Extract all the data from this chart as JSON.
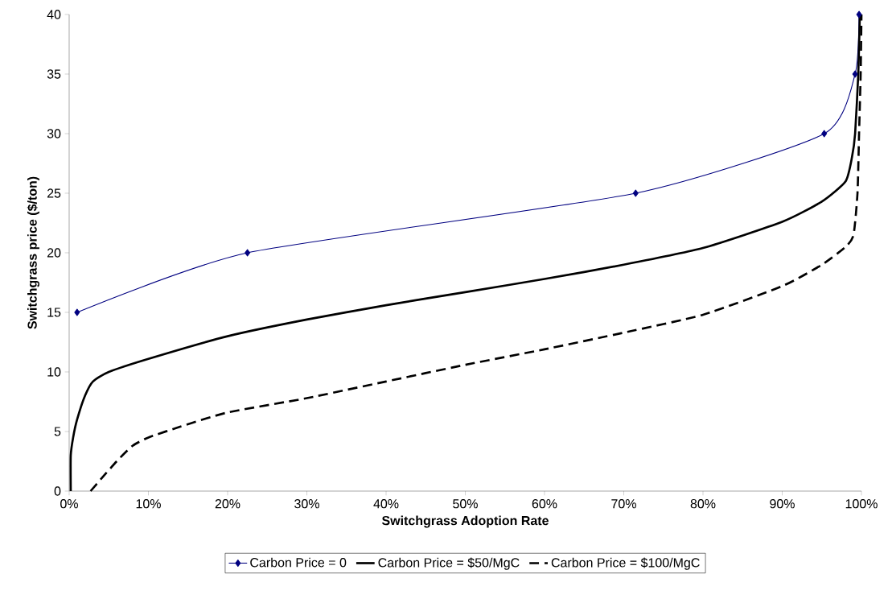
{
  "chart_data": {
    "type": "line",
    "xlabel": "Switchgrass Adoption Rate",
    "ylabel": "Switchgrass price ($/ton)",
    "xlim": [
      0,
      100
    ],
    "ylim": [
      0,
      40
    ],
    "xticks": [
      {
        "value": 0,
        "label": "0%"
      },
      {
        "value": 10,
        "label": "10%"
      },
      {
        "value": 20,
        "label": "20%"
      },
      {
        "value": 30,
        "label": "30%"
      },
      {
        "value": 40,
        "label": "40%"
      },
      {
        "value": 50,
        "label": "50%"
      },
      {
        "value": 60,
        "label": "60%"
      },
      {
        "value": 70,
        "label": "70%"
      },
      {
        "value": 80,
        "label": "80%"
      },
      {
        "value": 90,
        "label": "90%"
      },
      {
        "value": 100,
        "label": "100%"
      }
    ],
    "yticks": [
      0,
      5,
      10,
      15,
      20,
      25,
      30,
      35,
      40
    ],
    "grid": false,
    "legend": "bottom",
    "series": [
      {
        "name": "Carbon Price = 0",
        "color": "#000080",
        "marker": "diamond",
        "line_style": "solid",
        "x": [
          1,
          22.5,
          71.5,
          95.3,
          99.2,
          99.7
        ],
        "values": [
          15,
          20,
          25,
          30,
          35,
          40
        ]
      },
      {
        "name": "Carbon Price = $50/MgC",
        "color": "#000000",
        "marker": "none",
        "line_style": "solid",
        "x": [
          0.2,
          0.2,
          0.5,
          1,
          2,
          3,
          5,
          10,
          20,
          30,
          40,
          50,
          60,
          70,
          80,
          90,
          95,
          98,
          98.8,
          99.2,
          99.6,
          99.8
        ],
        "values": [
          0,
          3,
          4.5,
          6,
          8,
          9.2,
          10,
          11.1,
          13,
          14.4,
          15.6,
          16.7,
          17.8,
          19,
          20.4,
          22.6,
          24.3,
          26,
          28,
          30,
          35,
          40
        ]
      },
      {
        "name": "Carbon Price = $100/MgC",
        "color": "#000000",
        "marker": "none",
        "line_style": "dashed",
        "x": [
          2.7,
          4,
          6,
          8,
          10,
          14,
          20,
          30,
          40,
          50,
          60,
          70,
          80,
          90,
          95,
          98,
          99,
          99.5,
          99.7,
          99.9,
          100
        ],
        "values": [
          0,
          1,
          2.5,
          3.8,
          4.5,
          5.4,
          6.6,
          7.8,
          9.2,
          10.6,
          11.9,
          13.3,
          14.8,
          17.2,
          19,
          20.5,
          21.5,
          25,
          30,
          35,
          40
        ]
      }
    ]
  }
}
